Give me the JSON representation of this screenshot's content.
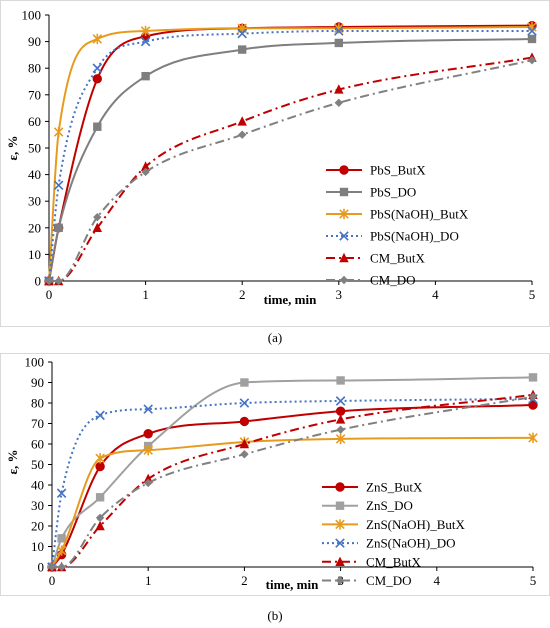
{
  "chart_data": [
    {
      "panel_label": "(a)",
      "type": "line",
      "xlabel": "time, min",
      "ylabel": "ε, %",
      "xlim": [
        0,
        5
      ],
      "ylim": [
        0,
        100
      ],
      "x_ticks": [
        0,
        1,
        2,
        3,
        4,
        5
      ],
      "y_ticks": [
        0,
        10,
        20,
        30,
        40,
        50,
        60,
        70,
        80,
        90,
        100
      ],
      "grid": false,
      "legend_position": "right",
      "series": [
        {
          "name": "PbS_ButX",
          "color": "#c00000",
          "dash": "solid",
          "marker": "circle",
          "x": [
            0,
            0.1,
            0.5,
            1,
            2,
            3,
            5
          ],
          "y": [
            0,
            20,
            76,
            92,
            95,
            95.5,
            96
          ]
        },
        {
          "name": "PbS_DO",
          "color": "#7f7f7f",
          "dash": "solid",
          "marker": "square",
          "x": [
            0,
            0.1,
            0.5,
            1,
            2,
            3,
            5
          ],
          "y": [
            0,
            20,
            58,
            77,
            87,
            89.5,
            91
          ]
        },
        {
          "name": "PbS(NaOH)_ButX",
          "color": "#e69b1e",
          "dash": "solid",
          "marker": "star",
          "x": [
            0,
            0.1,
            0.5,
            1,
            2,
            3,
            5
          ],
          "y": [
            0,
            56,
            91,
            94,
            95,
            95,
            95.5
          ]
        },
        {
          "name": "PbS(NaOH)_DO",
          "color": "#4472c4",
          "dash": "dot",
          "marker": "x",
          "x": [
            0,
            0.1,
            0.5,
            1,
            2,
            3,
            5
          ],
          "y": [
            0,
            36,
            80,
            90,
            93,
            94,
            94
          ]
        },
        {
          "name": "CM_ButX",
          "color": "#c00000",
          "dash": "dashdot",
          "marker": "triangle",
          "x": [
            0,
            0.1,
            0.5,
            1,
            2,
            3,
            5
          ],
          "y": [
            0,
            0,
            20,
            43,
            60,
            72,
            84
          ]
        },
        {
          "name": "CM_DO",
          "color": "#808080",
          "dash": "dashdot",
          "marker": "diamond",
          "x": [
            0,
            0.1,
            0.5,
            1,
            2,
            3,
            5
          ],
          "y": [
            0,
            0,
            24,
            41,
            55,
            67,
            83
          ]
        }
      ]
    },
    {
      "panel_label": "(b)",
      "type": "line",
      "xlabel": "time, min",
      "ylabel": "ε, %",
      "xlim": [
        0,
        5
      ],
      "ylim": [
        0,
        100
      ],
      "x_ticks": [
        0,
        1,
        2,
        3,
        4,
        5
      ],
      "y_ticks": [
        0,
        10,
        20,
        30,
        40,
        50,
        60,
        70,
        80,
        90,
        100
      ],
      "grid": false,
      "legend_position": "right",
      "series": [
        {
          "name": "ZnS_ButX",
          "color": "#c00000",
          "dash": "solid",
          "marker": "circle",
          "x": [
            0,
            0.1,
            0.5,
            1,
            2,
            3,
            5
          ],
          "y": [
            0,
            6,
            49,
            65,
            71,
            76,
            79
          ]
        },
        {
          "name": "ZnS_DO",
          "color": "#a0a0a0",
          "dash": "solid",
          "marker": "square",
          "x": [
            0,
            0.1,
            0.5,
            1,
            2,
            3,
            5
          ],
          "y": [
            0,
            14,
            34,
            59,
            90,
            91,
            92.5
          ]
        },
        {
          "name": "ZnS(NaOH)_ButX",
          "color": "#e69b1e",
          "dash": "solid",
          "marker": "star",
          "x": [
            0,
            0.1,
            0.5,
            1,
            2,
            3,
            5
          ],
          "y": [
            0,
            8,
            53,
            57,
            61,
            62.5,
            63
          ]
        },
        {
          "name": "ZnS(NaOH)_DO",
          "color": "#4472c4",
          "dash": "dot",
          "marker": "x",
          "x": [
            0,
            0.1,
            0.5,
            1,
            2,
            3,
            5
          ],
          "y": [
            0,
            36,
            74,
            77,
            80,
            81,
            82
          ]
        },
        {
          "name": "CM_ButX",
          "color": "#c00000",
          "dash": "dashdot",
          "marker": "triangle",
          "x": [
            0,
            0.1,
            0.5,
            1,
            2,
            3,
            5
          ],
          "y": [
            0,
            0,
            20,
            43,
            60,
            72,
            84
          ]
        },
        {
          "name": "CM_DO",
          "color": "#808080",
          "dash": "dashdot",
          "marker": "diamond",
          "x": [
            0,
            0.1,
            0.5,
            1,
            2,
            3,
            5
          ],
          "y": [
            0,
            0,
            24,
            41,
            55,
            67,
            83
          ]
        }
      ]
    }
  ]
}
